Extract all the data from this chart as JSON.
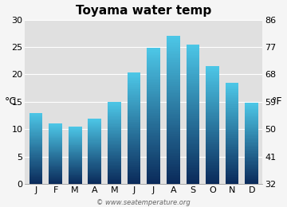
{
  "title": "Toyama water temp",
  "months": [
    "J",
    "F",
    "M",
    "A",
    "M",
    "J",
    "J",
    "A",
    "S",
    "O",
    "N",
    "D"
  ],
  "values_c": [
    13.0,
    11.0,
    10.5,
    12.0,
    15.0,
    20.3,
    24.8,
    27.0,
    25.5,
    21.5,
    18.4,
    14.8
  ],
  "ylim_c": [
    0,
    30
  ],
  "yticks_c": [
    0,
    5,
    10,
    15,
    20,
    25,
    30
  ],
  "ylim_f": [
    32,
    86
  ],
  "yticks_f": [
    32,
    41,
    50,
    59,
    68,
    77,
    86
  ],
  "ylabel_left": "°C",
  "ylabel_right": "°F",
  "bar_color_top": "#4dc8e8",
  "bar_color_bottom": "#0a2a5a",
  "plot_bg_color": "#e0e0e0",
  "fig_bg_color": "#f5f5f5",
  "grid_color": "#ffffff",
  "watermark": "© www.seatemperature.org",
  "title_fontsize": 11,
  "tick_fontsize": 8,
  "label_fontsize": 9,
  "watermark_fontsize": 6
}
